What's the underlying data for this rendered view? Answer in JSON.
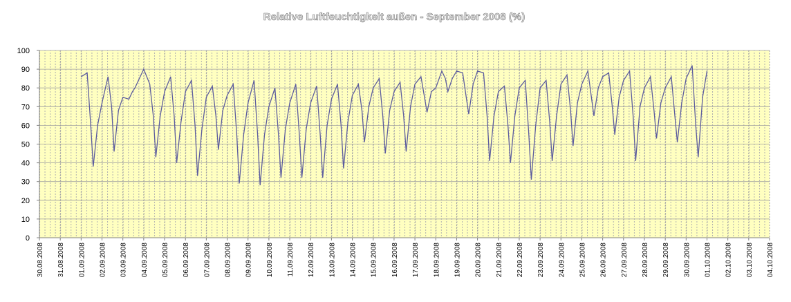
{
  "chart_data": {
    "type": "line",
    "title": "Relative Luftfeuchtigkeit außen - September 2008 (%)",
    "x": [
      2,
      2.29,
      2.46,
      2.58,
      2.79,
      3,
      3.29,
      3.46,
      3.58,
      3.79,
      4,
      4.29,
      4.46,
      4.58,
      4.79,
      5,
      5.29,
      5.46,
      5.58,
      5.79,
      6,
      6.29,
      6.46,
      6.58,
      6.79,
      7,
      7.29,
      7.46,
      7.58,
      7.79,
      8,
      8.29,
      8.46,
      8.58,
      8.79,
      9,
      9.29,
      9.46,
      9.58,
      9.79,
      10,
      10.29,
      10.46,
      10.58,
      10.79,
      11,
      11.29,
      11.46,
      11.58,
      11.79,
      12,
      12.29,
      12.46,
      12.58,
      12.79,
      13,
      13.29,
      13.46,
      13.58,
      13.79,
      14,
      14.29,
      14.46,
      14.58,
      14.79,
      15,
      15.29,
      15.46,
      15.58,
      15.79,
      16,
      16.29,
      16.46,
      16.58,
      16.79,
      17,
      17.29,
      17.46,
      17.58,
      17.79,
      18,
      18.29,
      18.46,
      18.58,
      18.79,
      19,
      19.29,
      19.46,
      19.58,
      19.79,
      20,
      20.29,
      20.46,
      20.58,
      20.79,
      21,
      21.29,
      21.46,
      21.58,
      21.79,
      22,
      22.29,
      22.46,
      22.58,
      22.79,
      23,
      23.29,
      23.46,
      23.58,
      23.79,
      24,
      24.29,
      24.46,
      24.58,
      24.79,
      25,
      25.29,
      25.46,
      25.58,
      25.79,
      26,
      26.29,
      26.46,
      26.58,
      26.79,
      27,
      27.29,
      27.46,
      27.58,
      27.79,
      28,
      28.29,
      28.46,
      28.58,
      28.79,
      29,
      29.29,
      29.46,
      29.58,
      29.79,
      30,
      30.29,
      30.46,
      30.58,
      30.79,
      31,
      31.29,
      31.46,
      31.58,
      31.79,
      32
    ],
    "series": [
      {
        "color": "#5c5c9e",
        "values": [
          86,
          88,
          60,
          38,
          60,
          72,
          86,
          70,
          46,
          68,
          75,
          74,
          78,
          80,
          85,
          90,
          82,
          65,
          43,
          65,
          78,
          86,
          65,
          40,
          62,
          78,
          84,
          60,
          33,
          58,
          75,
          81,
          65,
          47,
          68,
          76,
          82,
          55,
          29,
          55,
          72,
          84,
          55,
          28,
          55,
          70,
          80,
          55,
          32,
          58,
          72,
          82,
          55,
          32,
          58,
          72,
          81,
          55,
          32,
          60,
          74,
          82,
          60,
          37,
          62,
          76,
          82,
          68,
          51,
          70,
          80,
          85,
          65,
          45,
          68,
          78,
          83,
          65,
          46,
          70,
          82,
          86,
          75,
          67,
          78,
          80,
          89,
          85,
          78,
          85,
          89,
          88,
          75,
          66,
          82,
          89,
          88,
          65,
          41,
          65,
          78,
          81,
          60,
          40,
          65,
          80,
          84,
          55,
          31,
          60,
          80,
          84,
          62,
          41,
          65,
          82,
          87,
          68,
          49,
          72,
          82,
          89,
          75,
          65,
          80,
          86,
          88,
          70,
          55,
          75,
          84,
          89,
          65,
          41,
          70,
          80,
          86,
          68,
          53,
          72,
          80,
          86,
          65,
          51,
          72,
          85,
          92,
          60,
          43,
          75,
          89
        ]
      }
    ],
    "xlim": [
      0,
      35
    ],
    "xticks": [
      {
        "value": 0,
        "label": "30.08.2008"
      },
      {
        "value": 1,
        "label": "31.08.2008"
      },
      {
        "value": 2,
        "label": "01.09.2008"
      },
      {
        "value": 3,
        "label": "02.09.2008"
      },
      {
        "value": 4,
        "label": "03.09.2008"
      },
      {
        "value": 5,
        "label": "04.09.2008"
      },
      {
        "value": 6,
        "label": "05.09.2008"
      },
      {
        "value": 7,
        "label": "06.09.2008"
      },
      {
        "value": 8,
        "label": "07.09.2008"
      },
      {
        "value": 9,
        "label": "08.09.2008"
      },
      {
        "value": 10,
        "label": "09.09.2008"
      },
      {
        "value": 11,
        "label": "10.09.2008"
      },
      {
        "value": 12,
        "label": "11.09.2008"
      },
      {
        "value": 13,
        "label": "12.09.2008"
      },
      {
        "value": 14,
        "label": "13.09.2008"
      },
      {
        "value": 15,
        "label": "14.09.2008"
      },
      {
        "value": 16,
        "label": "15.09.2008"
      },
      {
        "value": 17,
        "label": "16.09.2008"
      },
      {
        "value": 18,
        "label": "17.09.2008"
      },
      {
        "value": 19,
        "label": "18.09.2008"
      },
      {
        "value": 20,
        "label": "19.09.2008"
      },
      {
        "value": 21,
        "label": "20.09.2008"
      },
      {
        "value": 22,
        "label": "21.09.2008"
      },
      {
        "value": 23,
        "label": "22.09.2008"
      },
      {
        "value": 24,
        "label": "23.09.2008"
      },
      {
        "value": 25,
        "label": "24.09.2008"
      },
      {
        "value": 26,
        "label": "25.09.2008"
      },
      {
        "value": 27,
        "label": "26.09.2008"
      },
      {
        "value": 28,
        "label": "27.09.2008"
      },
      {
        "value": 29,
        "label": "28.09.2008"
      },
      {
        "value": 30,
        "label": "29.09.2008"
      },
      {
        "value": 31,
        "label": "30.09.2008"
      },
      {
        "value": 32,
        "label": "01.10.2008"
      },
      {
        "value": 33,
        "label": "02.10.2008"
      },
      {
        "value": 34,
        "label": "03.10.2008"
      },
      {
        "value": 35,
        "label": "04.10.2008"
      }
    ],
    "ylim": [
      0,
      100
    ],
    "yticks": [
      0,
      10,
      20,
      30,
      40,
      50,
      60,
      70,
      80,
      90,
      100
    ],
    "grid": true
  }
}
